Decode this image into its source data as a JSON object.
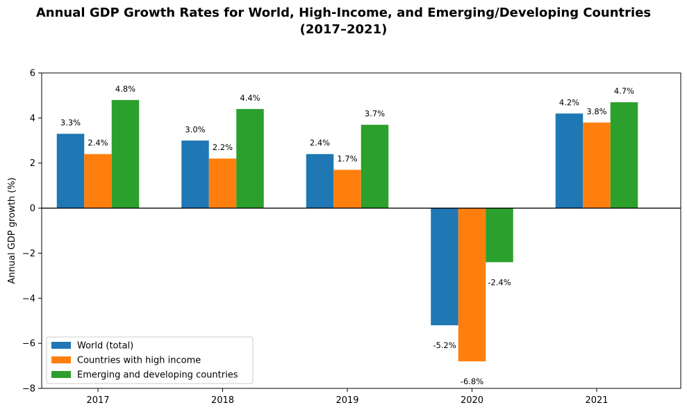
{
  "chart_data": {
    "type": "bar",
    "title_line1": "Annual GDP Growth Rates for World, High-Income, and Emerging/Developing Countries",
    "title_line2": "(2017–2021)",
    "xlabel": "",
    "ylabel": "Annual GDP growth (%)",
    "ylim": [
      -8,
      6
    ],
    "yticks": [
      -8,
      -6,
      -4,
      -2,
      0,
      2,
      4,
      6
    ],
    "ytick_labels": [
      "−8",
      "−6",
      "−4",
      "−2",
      "0",
      "2",
      "4",
      "6"
    ],
    "categories": [
      "2017",
      "2018",
      "2019",
      "2020",
      "2021"
    ],
    "series": [
      {
        "name": "World (total)",
        "color": "#1f77b4",
        "values": [
          3.3,
          3.0,
          2.4,
          -5.2,
          4.2
        ],
        "labels": [
          "3.3%",
          "3.0%",
          "2.4%",
          "-5.2%",
          "4.2%"
        ]
      },
      {
        "name": "Countries with high income",
        "color": "#ff7f0e",
        "values": [
          2.4,
          2.2,
          1.7,
          -6.8,
          3.8
        ],
        "labels": [
          "2.4%",
          "2.2%",
          "1.7%",
          "-6.8%",
          "3.8%"
        ]
      },
      {
        "name": "Emerging and developing countries",
        "color": "#2ca02c",
        "values": [
          4.8,
          4.4,
          3.7,
          -2.4,
          4.7
        ],
        "labels": [
          "4.8%",
          "4.4%",
          "3.7%",
          "-2.4%",
          "4.7%"
        ]
      }
    ],
    "grid": false,
    "legend_position": "lower-left"
  }
}
